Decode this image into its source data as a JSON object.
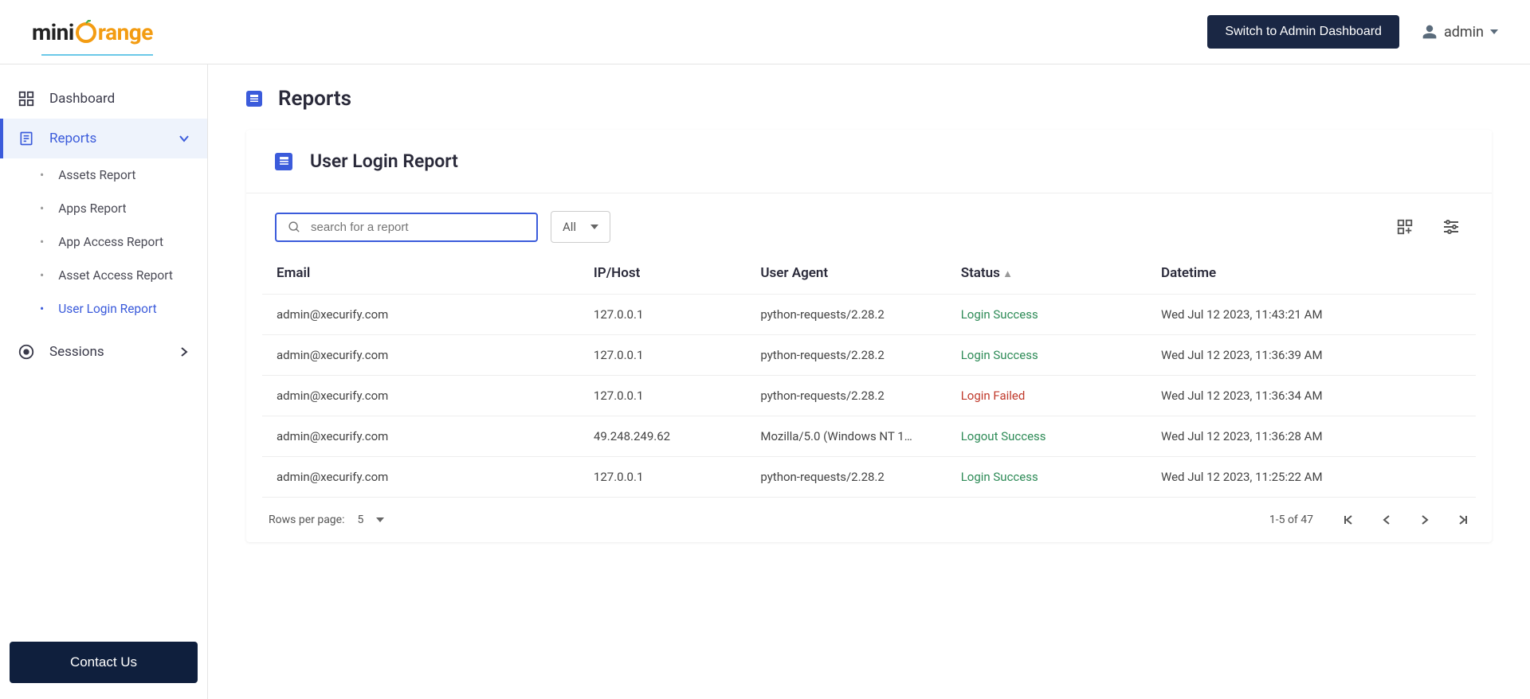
{
  "header": {
    "logo_text_main": "mini",
    "logo_text_accent": "range",
    "switch_button": "Switch to Admin Dashboard",
    "user_name": "admin"
  },
  "sidebar": {
    "dashboard": "Dashboard",
    "reports": "Reports",
    "sub": {
      "assets": "Assets Report",
      "apps": "Apps Report",
      "app_access": "App Access Report",
      "asset_access": "Asset Access Report",
      "user_login": "User Login Report"
    },
    "sessions": "Sessions",
    "contact": "Contact Us"
  },
  "page": {
    "title": "Reports",
    "card_title": "User Login Report",
    "search_placeholder": "search for a report",
    "filter_all": "All",
    "columns": {
      "email": "Email",
      "ip": "IP/Host",
      "ua": "User Agent",
      "status": "Status",
      "status_suffix": " ▲",
      "dt": "Datetime"
    }
  },
  "rows": [
    {
      "email": "admin@xecurify.com",
      "ip": "127.0.0.1",
      "ua": "python-requests/2.28.2",
      "status": "Login Success",
      "status_class": "status-success",
      "dt": "Wed Jul 12 2023, 11:43:21 AM"
    },
    {
      "email": "admin@xecurify.com",
      "ip": "127.0.0.1",
      "ua": "python-requests/2.28.2",
      "status": "Login Success",
      "status_class": "status-success",
      "dt": "Wed Jul 12 2023, 11:36:39 AM"
    },
    {
      "email": "admin@xecurify.com",
      "ip": "127.0.0.1",
      "ua": "python-requests/2.28.2",
      "status": "Login Failed",
      "status_class": "status-failed",
      "dt": "Wed Jul 12 2023, 11:36:34 AM"
    },
    {
      "email": "admin@xecurify.com",
      "ip": "49.248.249.62",
      "ua": "Mozilla/5.0 (Windows NT 1…",
      "status": "Logout Success",
      "status_class": "status-logout",
      "dt": "Wed Jul 12 2023, 11:36:28 AM"
    },
    {
      "email": "admin@xecurify.com",
      "ip": "127.0.0.1",
      "ua": "python-requests/2.28.2",
      "status": "Login Success",
      "status_class": "status-success",
      "dt": "Wed Jul 12 2023, 11:25:22 AM"
    }
  ],
  "pager": {
    "rows_per_page_label": "Rows per page:",
    "rows_per_page_value": "5",
    "range": "1-5 of 47"
  },
  "colors": {
    "accent": "#3b5bdb",
    "success": "#2e8b57",
    "failed": "#c0392b",
    "header_bg": "#1a2744",
    "brand_orange": "#f39c12"
  }
}
